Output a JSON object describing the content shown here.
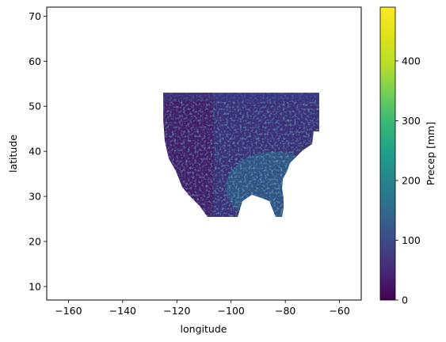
{
  "chart_data": {
    "type": "heatmap",
    "title": "",
    "xlabel": "longitude",
    "ylabel": "latitude",
    "xlim": [
      -168,
      -52
    ],
    "ylim": [
      7,
      72
    ],
    "x_ticks": [
      -160,
      -140,
      -120,
      -100,
      -80,
      -60
    ],
    "x_tick_labels": [
      "−160",
      "−140",
      "−120",
      "−100",
      "−80",
      "−60"
    ],
    "y_ticks": [
      10,
      20,
      30,
      40,
      50,
      60,
      70
    ],
    "y_tick_labels": [
      "10",
      "20",
      "30",
      "40",
      "50",
      "60",
      "70"
    ],
    "data_extent": {
      "lon_min": -125,
      "lon_max": -67,
      "lat_min": 25,
      "lat_max": 53
    },
    "colorbar": {
      "label": "Precep [mm]",
      "colormap": "viridis",
      "vmin": 0,
      "vmax": 490,
      "ticks": [
        0,
        100,
        200,
        300,
        400
      ],
      "tick_labels": [
        "0",
        "100",
        "200",
        "300",
        "400"
      ]
    },
    "grid": false
  }
}
